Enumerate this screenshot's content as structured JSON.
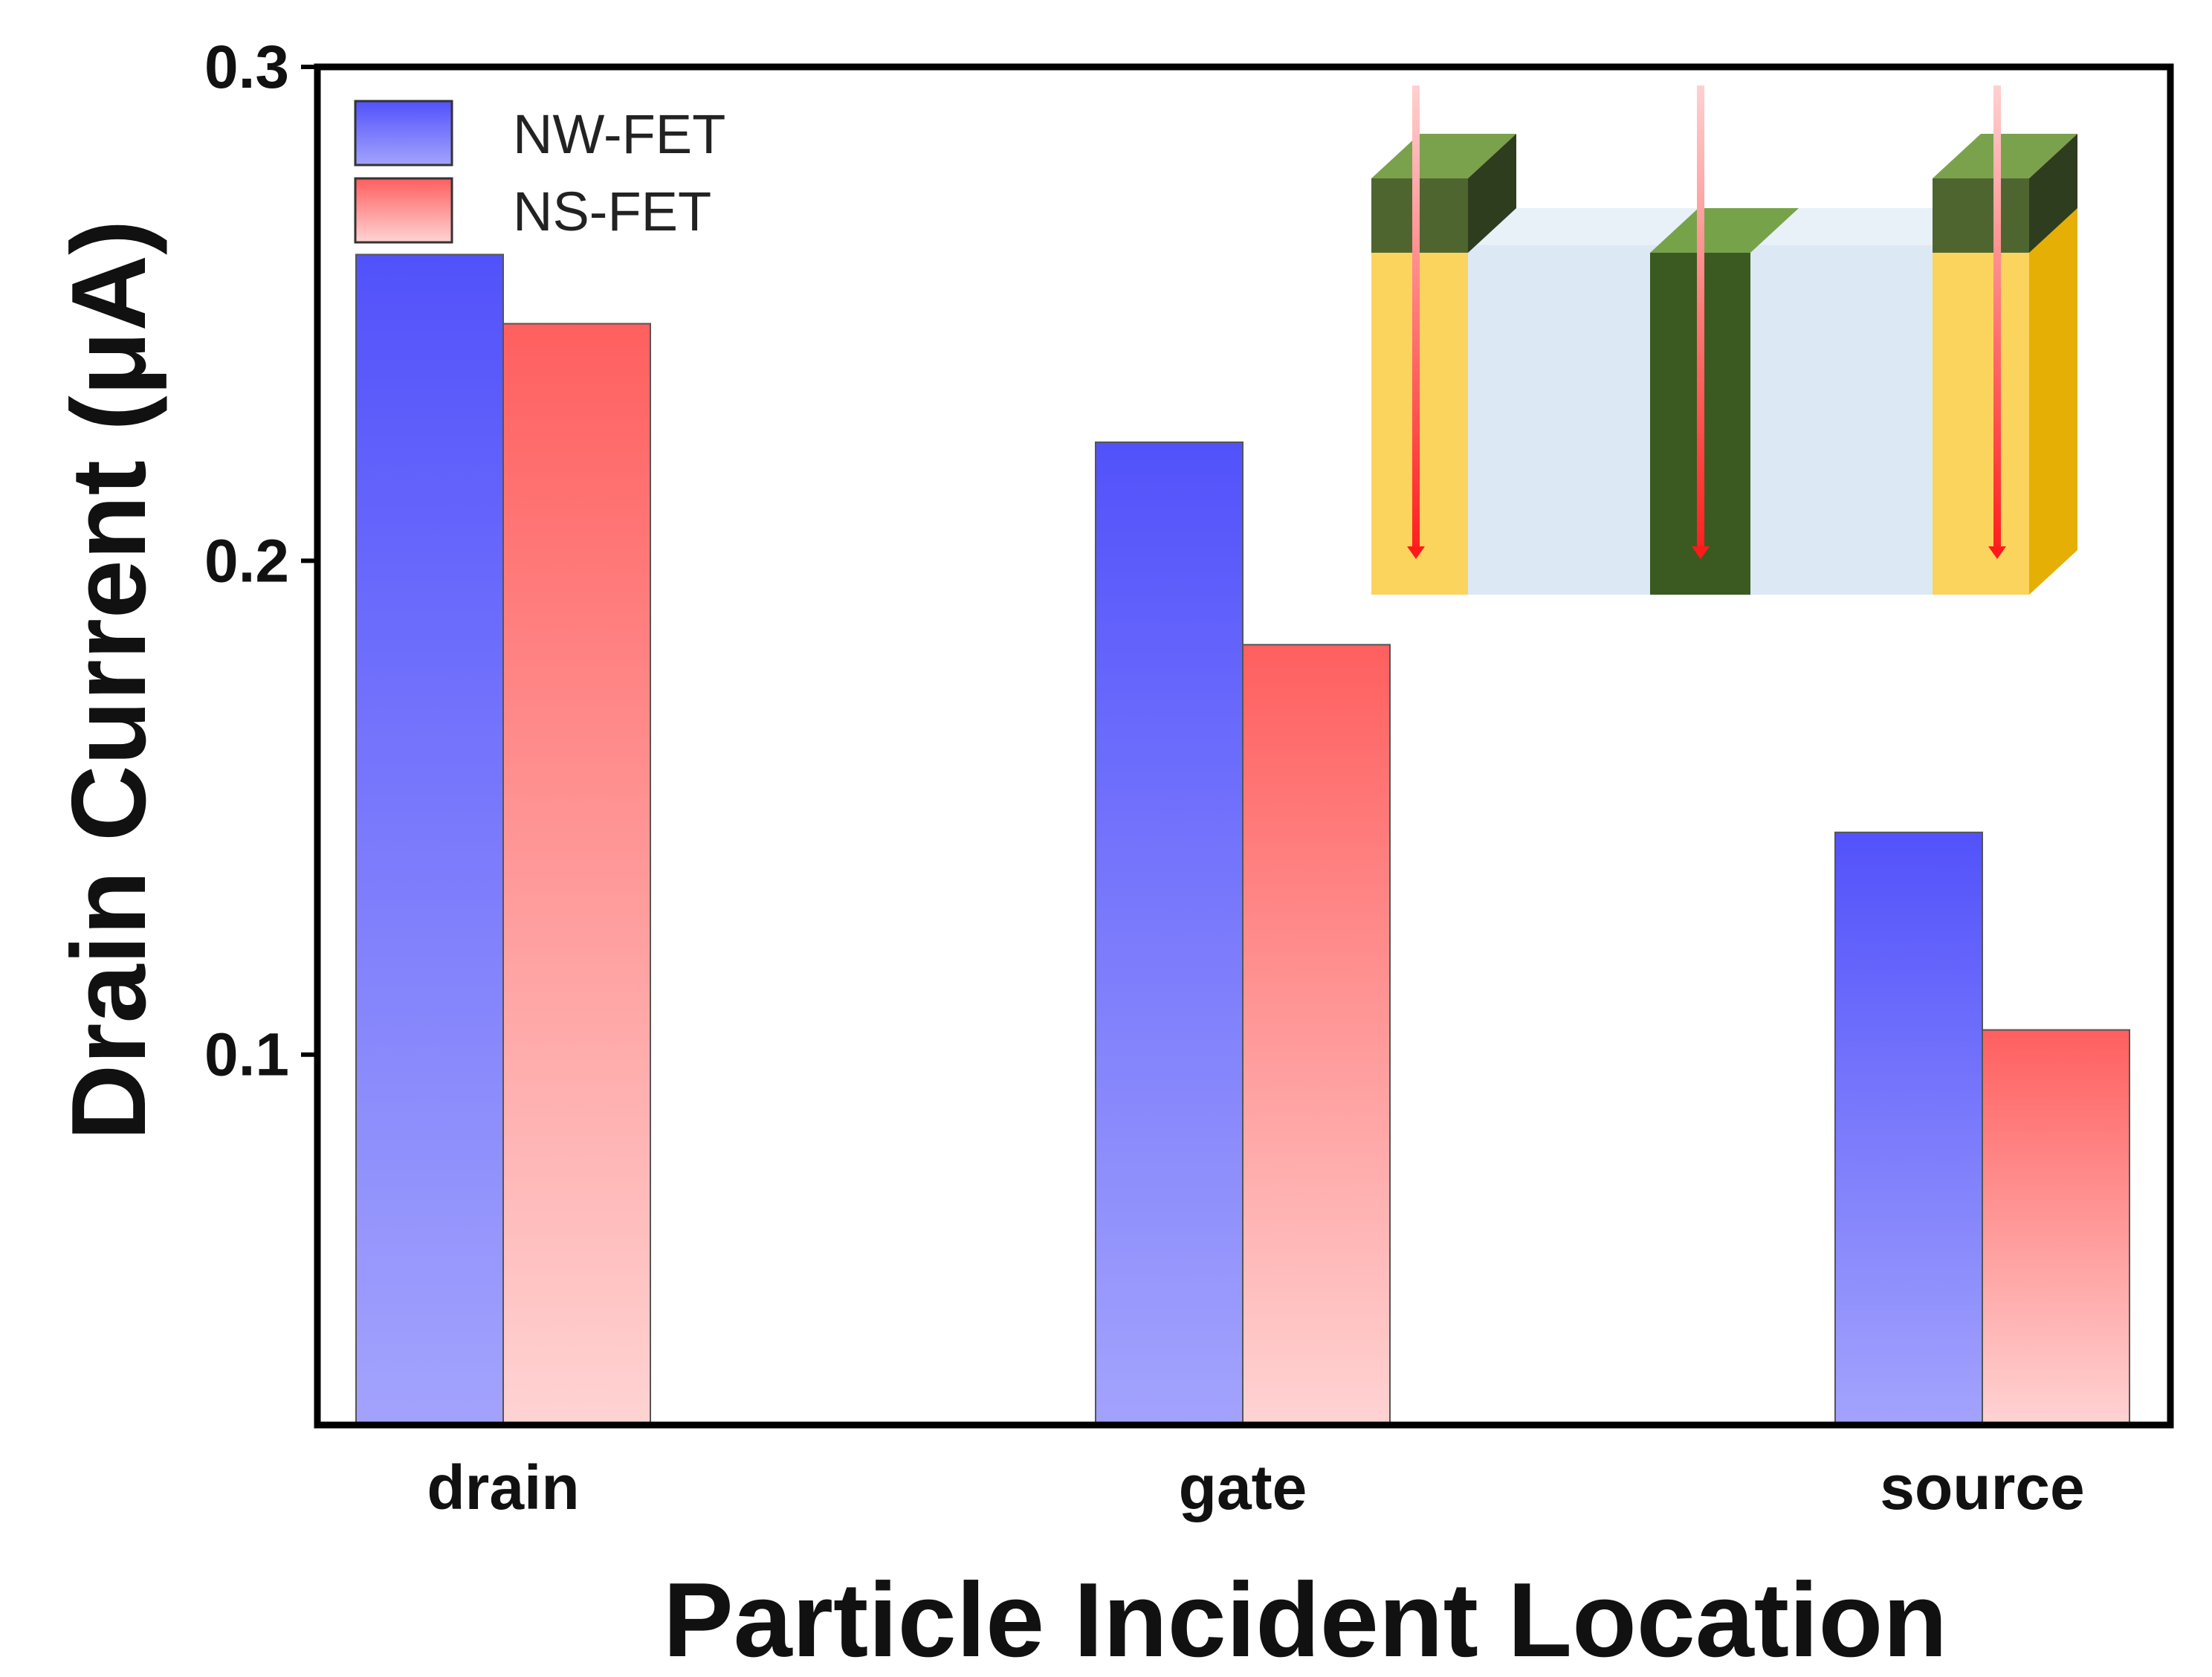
{
  "chart_data": {
    "type": "bar",
    "xlabel": "Particle Incident Location",
    "ylabel": "Drain Current (μA)",
    "categories": [
      "drain",
      "gate",
      "source"
    ],
    "series": [
      {
        "name": "NW-FET",
        "values": [
          0.262,
          0.224,
          0.145
        ],
        "color": "#5a5aff"
      },
      {
        "name": "NS-FET",
        "values": [
          0.248,
          0.183,
          0.105
        ],
        "color": "#ff6666"
      }
    ],
    "ylim": [
      0.025,
      0.3
    ],
    "yticks": [
      0.1,
      0.2,
      0.3
    ],
    "ytick_labels": [
      "0.1",
      "0.2",
      "0.3"
    ],
    "legend_position": "top-left",
    "grid": false
  }
}
